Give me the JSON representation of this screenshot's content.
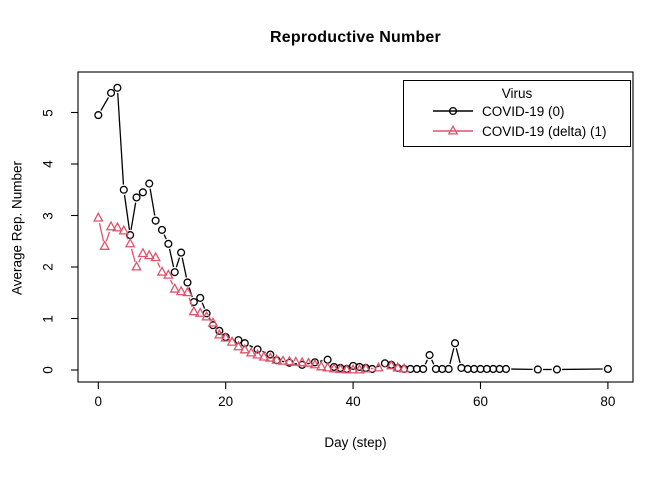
{
  "title": "Reproductive Number",
  "axes": {
    "xlabel": "Day (step)",
    "ylabel": "Average Rep. Number",
    "x_tick_labels": [
      "0",
      "20",
      "40",
      "60",
      "80"
    ],
    "y_tick_labels": [
      "0",
      "1",
      "2",
      "3",
      "4",
      "5"
    ]
  },
  "legend": {
    "title": "Virus",
    "entries": [
      {
        "label": "COVID-19 (0)",
        "color": "#000000",
        "marker": "circle"
      },
      {
        "label": "COVID-19 (delta) (1)",
        "color": "#DF536B",
        "marker": "triangle"
      }
    ]
  },
  "chart_data": {
    "type": "line",
    "title": "Reproductive Number",
    "xlabel": "Day (step)",
    "ylabel": "Average Rep. Number",
    "xlim": [
      0,
      80
    ],
    "ylim": [
      0,
      5.5
    ],
    "x_ticks": [
      0,
      20,
      40,
      60,
      80
    ],
    "y_ticks": [
      0,
      1,
      2,
      3,
      4,
      5
    ],
    "grid": false,
    "legend_title": "Virus",
    "legend_position": "top-right",
    "series": [
      {
        "name": "COVID-19 (0)",
        "color": "#000000",
        "marker": "circle-open",
        "line": "solid",
        "points": [
          [
            0,
            4.95
          ],
          [
            2,
            5.38
          ],
          [
            3,
            5.48
          ],
          [
            4,
            3.5
          ],
          [
            5,
            2.62
          ],
          [
            6,
            3.35
          ],
          [
            7,
            3.45
          ],
          [
            8,
            3.62
          ],
          [
            9,
            2.9
          ],
          [
            10,
            2.72
          ],
          [
            11,
            2.45
          ],
          [
            12,
            1.9
          ],
          [
            13,
            2.28
          ],
          [
            14,
            1.7
          ],
          [
            15,
            1.32
          ],
          [
            16,
            1.4
          ],
          [
            17,
            1.1
          ],
          [
            18,
            0.87
          ],
          [
            19,
            0.76
          ],
          [
            20,
            0.64
          ],
          [
            22,
            0.58
          ],
          [
            23,
            0.52
          ],
          [
            25,
            0.4
          ],
          [
            27,
            0.3
          ],
          [
            28,
            0.19
          ],
          [
            30,
            0.14
          ],
          [
            32,
            0.1
          ],
          [
            34,
            0.15
          ],
          [
            36,
            0.2
          ],
          [
            37,
            0.06
          ],
          [
            38,
            0.04
          ],
          [
            39,
            0.02
          ],
          [
            40,
            0.08
          ],
          [
            41,
            0.06
          ],
          [
            42,
            0.04
          ],
          [
            43,
            0.02
          ],
          [
            45,
            0.13
          ],
          [
            46,
            0.1
          ],
          [
            47,
            0.04
          ],
          [
            48,
            0.02
          ],
          [
            49,
            0.02
          ],
          [
            50,
            0.02
          ],
          [
            51,
            0.02
          ],
          [
            52,
            0.29
          ],
          [
            53,
            0.02
          ],
          [
            54,
            0.02
          ],
          [
            55,
            0.02
          ],
          [
            56,
            0.52
          ],
          [
            57,
            0.04
          ],
          [
            58,
            0.02
          ],
          [
            59,
            0.02
          ],
          [
            60,
            0.02
          ],
          [
            61,
            0.02
          ],
          [
            62,
            0.02
          ],
          [
            63,
            0.02
          ],
          [
            64,
            0.02
          ],
          [
            69,
            0.01
          ],
          [
            72,
            0.01
          ],
          [
            80,
            0.02
          ]
        ]
      },
      {
        "name": "COVID-19 (delta) (1)",
        "color": "#DF536B",
        "marker": "triangle-open",
        "line": "solid",
        "points": [
          [
            0,
            2.95
          ],
          [
            1,
            2.4
          ],
          [
            2,
            2.78
          ],
          [
            3,
            2.76
          ],
          [
            4,
            2.7
          ],
          [
            5,
            2.45
          ],
          [
            6,
            2.0
          ],
          [
            7,
            2.26
          ],
          [
            8,
            2.22
          ],
          [
            9,
            2.18
          ],
          [
            10,
            1.9
          ],
          [
            11,
            1.84
          ],
          [
            12,
            1.57
          ],
          [
            13,
            1.52
          ],
          [
            14,
            1.5
          ],
          [
            15,
            1.13
          ],
          [
            16,
            1.1
          ],
          [
            17,
            1.03
          ],
          [
            18,
            0.91
          ],
          [
            19,
            0.68
          ],
          [
            20,
            0.62
          ],
          [
            21,
            0.54
          ],
          [
            22,
            0.45
          ],
          [
            23,
            0.39
          ],
          [
            24,
            0.33
          ],
          [
            25,
            0.29
          ],
          [
            26,
            0.25
          ],
          [
            27,
            0.23
          ],
          [
            28,
            0.19
          ],
          [
            29,
            0.17
          ],
          [
            30,
            0.16
          ],
          [
            31,
            0.15
          ],
          [
            32,
            0.14
          ],
          [
            33,
            0.13
          ],
          [
            34,
            0.1
          ],
          [
            35,
            0.06
          ],
          [
            36,
            0.04
          ],
          [
            37,
            0.02
          ],
          [
            38,
            0.01
          ],
          [
            39,
            0.0
          ],
          [
            40,
            0.0
          ],
          [
            41,
            0.0
          ],
          [
            42,
            0.02
          ],
          [
            44,
            0.04
          ],
          [
            46,
            0.08
          ],
          [
            47,
            0.04
          ],
          [
            48,
            0.02
          ]
        ]
      }
    ]
  }
}
